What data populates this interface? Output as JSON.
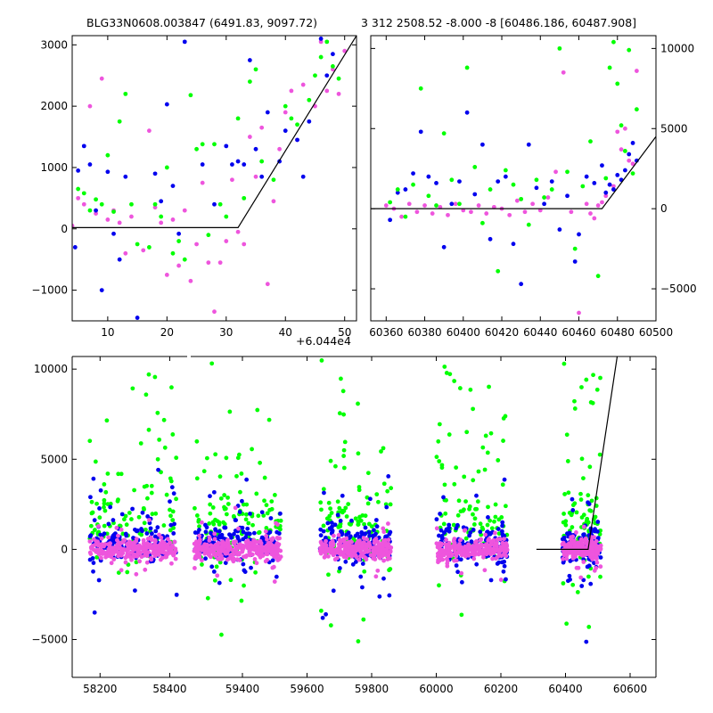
{
  "colors": {
    "green": "#00ff00",
    "blue": "#0000ee",
    "pink": "#ee55dd",
    "model_line": "#000000"
  },
  "chart_data": [
    {
      "type": "scatter",
      "title": "BLG33N0608.003847 (6491.83, 9097.72)",
      "x_offset_label": "+6.044e4",
      "xlim": [
        4,
        52
      ],
      "ylim": [
        -1500,
        3150
      ],
      "x_ticks": [
        10,
        20,
        30,
        40,
        50
      ],
      "y_ticks": [
        -1000,
        0,
        1000,
        2000,
        3000
      ],
      "x_tick_labels": [
        "10",
        "20",
        "30",
        "40",
        "50"
      ],
      "y_tick_labels": [
        "−1000",
        "0",
        "1000",
        "2000",
        "3000"
      ],
      "model_line": [
        [
          4,
          20
        ],
        [
          32,
          20
        ],
        [
          52,
          3150
        ]
      ],
      "series": [
        {
          "color": "green",
          "points": [
            [
              5,
              650
            ],
            [
              6,
              580
            ],
            [
              7,
              300
            ],
            [
              8,
              480
            ],
            [
              9,
              400
            ],
            [
              10,
              1200
            ],
            [
              11,
              280
            ],
            [
              12,
              1750
            ],
            [
              13,
              2200
            ],
            [
              14,
              400
            ],
            [
              15,
              -250
            ],
            [
              17,
              -300
            ],
            [
              18,
              400
            ],
            [
              19,
              200
            ],
            [
              20,
              1000
            ],
            [
              21,
              -400
            ],
            [
              22,
              -200
            ],
            [
              23,
              -500
            ],
            [
              24,
              2180
            ],
            [
              25,
              1300
            ],
            [
              26,
              1380
            ],
            [
              27,
              -100
            ],
            [
              28,
              1380
            ],
            [
              29,
              400
            ],
            [
              30,
              200
            ],
            [
              32,
              1800
            ],
            [
              33,
              500
            ],
            [
              34,
              2400
            ],
            [
              35,
              2600
            ],
            [
              36,
              1100
            ],
            [
              38,
              800
            ],
            [
              40,
              2000
            ],
            [
              41,
              1800
            ],
            [
              42,
              1700
            ],
            [
              44,
              2100
            ],
            [
              45,
              2500
            ],
            [
              46,
              2800
            ],
            [
              47,
              3050
            ],
            [
              48,
              2650
            ],
            [
              49,
              2450
            ]
          ]
        },
        {
          "color": "blue",
          "points": [
            [
              4.5,
              -300
            ],
            [
              5,
              950
            ],
            [
              6,
              1350
            ],
            [
              7,
              1050
            ],
            [
              8,
              300
            ],
            [
              9,
              -1000
            ],
            [
              10,
              930
            ],
            [
              11,
              -80
            ],
            [
              12,
              -500
            ],
            [
              13,
              850
            ],
            [
              14,
              -1550
            ],
            [
              15,
              -1450
            ],
            [
              18,
              900
            ],
            [
              19,
              450
            ],
            [
              20,
              2030
            ],
            [
              21,
              700
            ],
            [
              22,
              -80
            ],
            [
              23,
              3050
            ],
            [
              26,
              1050
            ],
            [
              28,
              400
            ],
            [
              30,
              1350
            ],
            [
              31,
              1050
            ],
            [
              32,
              1100
            ],
            [
              33,
              1050
            ],
            [
              34,
              2750
            ],
            [
              35,
              1300
            ],
            [
              36,
              850
            ],
            [
              37,
              1900
            ],
            [
              39,
              1100
            ],
            [
              40,
              1600
            ],
            [
              42,
              1450
            ],
            [
              43,
              850
            ],
            [
              44,
              1750
            ],
            [
              46,
              3100
            ],
            [
              47,
              2500
            ],
            [
              48,
              2850
            ]
          ]
        },
        {
          "color": "pink",
          "points": [
            [
              4,
              50
            ],
            [
              5,
              500
            ],
            [
              6,
              400
            ],
            [
              7,
              2000
            ],
            [
              8,
              250
            ],
            [
              9,
              2450
            ],
            [
              10,
              150
            ],
            [
              11,
              300
            ],
            [
              12,
              100
            ],
            [
              13,
              -400
            ],
            [
              14,
              200
            ],
            [
              16,
              -350
            ],
            [
              17,
              1600
            ],
            [
              18,
              350
            ],
            [
              19,
              100
            ],
            [
              20,
              -750
            ],
            [
              21,
              150
            ],
            [
              22,
              -600
            ],
            [
              23,
              300
            ],
            [
              24,
              -850
            ],
            [
              25,
              -250
            ],
            [
              26,
              750
            ],
            [
              27,
              -550
            ],
            [
              28,
              -1350
            ],
            [
              29,
              -550
            ],
            [
              30,
              -200
            ],
            [
              31,
              800
            ],
            [
              32,
              -50
            ],
            [
              33,
              -250
            ],
            [
              34,
              1500
            ],
            [
              35,
              850
            ],
            [
              36,
              1650
            ],
            [
              37,
              -900
            ],
            [
              38,
              450
            ],
            [
              39,
              1300
            ],
            [
              40,
              1900
            ],
            [
              41,
              2250
            ],
            [
              42,
              1450
            ],
            [
              43,
              2350
            ],
            [
              45,
              2000
            ],
            [
              46,
              3050
            ],
            [
              47,
              2250
            ],
            [
              48,
              2600
            ],
            [
              49,
              2200
            ],
            [
              50,
              2900
            ]
          ]
        }
      ]
    },
    {
      "type": "scatter",
      "title": "3 312 2508.52 -8.000 -8 [60486.186, 60487.908]",
      "xlim": [
        60352,
        60500
      ],
      "ylim": [
        -7000,
        10800
      ],
      "x_ticks": [
        60360,
        60380,
        60400,
        60420,
        60440,
        60460,
        60480,
        60500
      ],
      "y_ticks": [
        -5000,
        0,
        5000,
        10000
      ],
      "x_tick_labels": [
        "60360",
        "60380",
        "60400",
        "60420",
        "60440",
        "60460",
        "60480",
        "60500"
      ],
      "y_tick_labels": [
        "−5000",
        "0",
        "5000",
        "10000"
      ],
      "y_axis_side": "right",
      "model_line": [
        [
          60352,
          0
        ],
        [
          60472,
          0
        ],
        [
          60500,
          4500
        ]
      ],
      "series": [
        {
          "color": "green",
          "points": [
            [
              60362,
              400
            ],
            [
              60366,
              1200
            ],
            [
              60370,
              -500
            ],
            [
              60374,
              1500
            ],
            [
              60378,
              7500
            ],
            [
              60382,
              800
            ],
            [
              60386,
              200
            ],
            [
              60390,
              4700
            ],
            [
              60394,
              1800
            ],
            [
              60398,
              300
            ],
            [
              60402,
              8800
            ],
            [
              60406,
              2600
            ],
            [
              60410,
              -900
            ],
            [
              60414,
              1200
            ],
            [
              60418,
              -3900
            ],
            [
              60422,
              2400
            ],
            [
              60426,
              1500
            ],
            [
              60430,
              600
            ],
            [
              60434,
              -1000
            ],
            [
              60438,
              1800
            ],
            [
              60442,
              700
            ],
            [
              60446,
              1200
            ],
            [
              60450,
              10000
            ],
            [
              60454,
              2300
            ],
            [
              60458,
              -2500
            ],
            [
              60462,
              1400
            ],
            [
              60466,
              4200
            ],
            [
              60470,
              -4200
            ],
            [
              60474,
              1900
            ],
            [
              60476,
              8800
            ],
            [
              60478,
              10400
            ],
            [
              60480,
              7800
            ],
            [
              60482,
              5200
            ],
            [
              60484,
              3600
            ],
            [
              60486,
              9900
            ],
            [
              60488,
              2200
            ],
            [
              60490,
              6200
            ]
          ]
        },
        {
          "color": "blue",
          "points": [
            [
              60362,
              -700
            ],
            [
              60366,
              1000
            ],
            [
              60370,
              1200
            ],
            [
              60374,
              2200
            ],
            [
              60378,
              4800
            ],
            [
              60382,
              2000
            ],
            [
              60386,
              1600
            ],
            [
              60390,
              -2400
            ],
            [
              60394,
              300
            ],
            [
              60398,
              1700
            ],
            [
              60402,
              6000
            ],
            [
              60406,
              900
            ],
            [
              60410,
              4000
            ],
            [
              60414,
              -1900
            ],
            [
              60418,
              1700
            ],
            [
              60422,
              2000
            ],
            [
              60426,
              -2200
            ],
            [
              60430,
              -4700
            ],
            [
              60434,
              4000
            ],
            [
              60438,
              1300
            ],
            [
              60442,
              300
            ],
            [
              60446,
              1700
            ],
            [
              60450,
              -1300
            ],
            [
              60454,
              800
            ],
            [
              60458,
              -3300
            ],
            [
              60460,
              -1600
            ],
            [
              60464,
              2000
            ],
            [
              60468,
              1600
            ],
            [
              60472,
              2700
            ],
            [
              60474,
              1000
            ],
            [
              60476,
              1500
            ],
            [
              60478,
              1200
            ],
            [
              60480,
              2100
            ],
            [
              60482,
              1800
            ],
            [
              60484,
              2400
            ],
            [
              60486,
              3400
            ],
            [
              60488,
              4100
            ],
            [
              60490,
              3000
            ]
          ]
        },
        {
          "color": "pink",
          "points": [
            [
              60360,
              200
            ],
            [
              60364,
              0
            ],
            [
              60368,
              -500
            ],
            [
              60372,
              300
            ],
            [
              60376,
              -200
            ],
            [
              60380,
              200
            ],
            [
              60384,
              -300
            ],
            [
              60388,
              100
            ],
            [
              60392,
              -400
            ],
            [
              60396,
              300
            ],
            [
              60400,
              -100
            ],
            [
              60404,
              -200
            ],
            [
              60408,
              200
            ],
            [
              60412,
              -300
            ],
            [
              60416,
              100
            ],
            [
              60420,
              0
            ],
            [
              60424,
              -400
            ],
            [
              60428,
              500
            ],
            [
              60432,
              -200
            ],
            [
              60436,
              300
            ],
            [
              60440,
              -100
            ],
            [
              60444,
              700
            ],
            [
              60448,
              2300
            ],
            [
              60452,
              8500
            ],
            [
              60456,
              -200
            ],
            [
              60460,
              -6500
            ],
            [
              60464,
              300
            ],
            [
              60466,
              -300
            ],
            [
              60468,
              -600
            ],
            [
              60470,
              200
            ],
            [
              60472,
              400
            ],
            [
              60474,
              800
            ],
            [
              60476,
              1500
            ],
            [
              60478,
              1400
            ],
            [
              60480,
              4800
            ],
            [
              60482,
              3700
            ],
            [
              60484,
              5000
            ],
            [
              60486,
              3000
            ],
            [
              60488,
              2800
            ],
            [
              60490,
              8600
            ]
          ]
        }
      ]
    },
    {
      "type": "scatter",
      "xlim": [
        58120,
        60680
      ],
      "ylim": [
        -7100,
        10700
      ],
      "x_ticks": [
        58200,
        58400,
        59400,
        59600,
        59800,
        60000,
        60200,
        60400,
        60600
      ],
      "x_tick_labels": [
        "58200",
        "58400",
        "59400",
        "59600",
        "59800",
        "60000",
        "60200",
        "60400",
        "60600"
      ],
      "y_ticks": [
        -5000,
        0,
        5000,
        10000
      ],
      "y_tick_labels": [
        "−5000",
        "0",
        "5000",
        "10000"
      ],
      "axis_break": [
        58450,
        59240
      ],
      "model_line": [
        [
          60310,
          0
        ],
        [
          60470,
          0
        ],
        [
          60560,
          10700
        ]
      ],
      "seasons": [
        {
          "x_range": [
            58170,
            58420
          ],
          "scale": 1.0
        },
        {
          "x_range": [
            59250,
            59520
          ],
          "scale": 1.15
        },
        {
          "x_range": [
            59640,
            59860
          ],
          "scale": 1.0
        },
        {
          "x_range": [
            60000,
            60220
          ],
          "scale": 0.9
        },
        {
          "x_range": [
            60390,
            60510
          ],
          "scale": 0.8
        }
      ]
    }
  ]
}
